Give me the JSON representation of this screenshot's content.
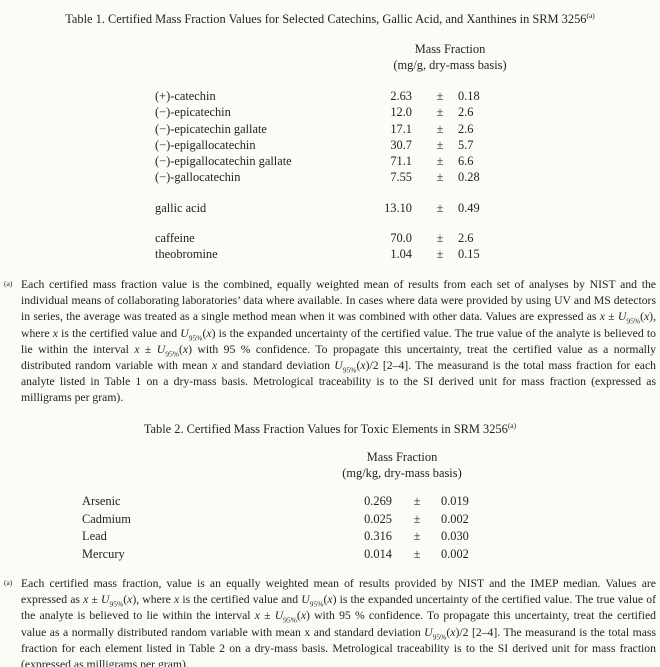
{
  "page": {
    "background": "#fcfcf7",
    "text_color": "#222222"
  },
  "table1": {
    "title": "Table 1.  Certified Mass Fraction Values for Selected Catechins, Gallic Acid, and Xanthines in SRM 3256",
    "title_superscript": "(a)",
    "header_line1": "Mass Fraction",
    "header_line2": "(mg/g, dry-mass basis)",
    "groups": [
      {
        "rows": [
          {
            "name": "(+)-catechin",
            "value": "2.63",
            "pm": "±",
            "unc": "0.18"
          },
          {
            "name": "(−)-epicatechin",
            "value": "12.0",
            "pm": "±",
            "unc": "2.6"
          },
          {
            "name": "(−)-epicatechin gallate",
            "value": "17.1",
            "pm": "±",
            "unc": "2.6"
          },
          {
            "name": "(−)-epigallocatechin",
            "value": "30.7",
            "pm": "±",
            "unc": "5.7"
          },
          {
            "name": "(−)-epigallocatechin gallate",
            "value": "71.1",
            "pm": "±",
            "unc": "6.6"
          },
          {
            "name": "(−)-gallocatechin",
            "value": "7.55",
            "pm": "±",
            "unc": "0.28"
          }
        ]
      },
      {
        "rows": [
          {
            "name": "gallic acid",
            "value": "13.10",
            "pm": "±",
            "unc": "0.49"
          }
        ]
      },
      {
        "rows": [
          {
            "name": "caffeine",
            "value": "70.0",
            "pm": "±",
            "unc": "2.6"
          },
          {
            "name": "theobromine",
            "value": "1.04",
            "pm": "±",
            "unc": "0.15"
          }
        ]
      }
    ],
    "footnote_marker": "(a)",
    "footnote_html": "Each certified mass fraction value is the combined, equally weighted mean of results from each set of analyses by NIST and the individual means of collaborating laboratories’ data where available.  In cases where data were provided by using UV and MS detectors in series, the average was treated as a single method mean when it was combined with other data.  Values are expressed as <i>x</i> ± <i>U</i><sub>95%</sub>(<i>x</i>), where <i>x</i> is the certified value and <i>U</i><sub>95%</sub>(<i>x</i>) is the expanded uncertainty of the certified value.  The true value of the analyte is believed to lie within the interval <i>x</i> ± <i>U</i><sub>95%</sub>(<i>x</i>) with 95 % confidence.  To propagate this uncertainty, treat the certified value as a normally distributed random variable with mean <i>x</i> and standard deviation <i>U</i><sub>95%</sub>(<i>x</i>)/2 [2–4].  The measurand is the total mass fraction for each analyte listed in Table 1 on a dry-mass basis.  Metrological traceability is to the SI derived unit for mass fraction (expressed as milligrams per gram)."
  },
  "table2": {
    "title": "Table 2.  Certified Mass Fraction Values for Toxic Elements in SRM 3256",
    "title_superscript": "(a)",
    "header_line1": "Mass Fraction",
    "header_line2": "(mg/kg, dry-mass basis)",
    "groups": [
      {
        "rows": [
          {
            "name": "Arsenic",
            "value": "0.269",
            "pm": "±",
            "unc": "0.019"
          },
          {
            "name": "Cadmium",
            "value": "0.025",
            "pm": "±",
            "unc": "0.002"
          },
          {
            "name": "Lead",
            "value": "0.316",
            "pm": "±",
            "unc": "0.030"
          },
          {
            "name": "Mercury",
            "value": "0.014",
            "pm": "±",
            "unc": "0.002"
          }
        ]
      }
    ],
    "footnote_marker": "(a)",
    "footnote_html": "Each certified mass fraction, value is an equally weighted mean of results provided by NIST and the IMEP median.  Values are expressed as <i>x</i> ± <i>U</i><sub>95%</sub>(<i>x</i>), where <i>x</i> is the certified value and <i>U</i><sub>95%</sub>(<i>x</i>) is the expanded uncertainty of the certified value.  The true value of the analyte is believed to lie within the interval <i>x</i> ± <i>U</i><sub>95%</sub>(<i>x</i>) with 95 % confidence.  To propagate this uncertainty, treat the certified value as a normally distributed random variable with mean x and standard deviation <i>U</i><sub>95%</sub>(<i>x</i>)/2 [2–4].  The measurand is the total mass fraction for each element listed in Table 2 on a dry-mass basis.  Metrological traceability is to the SI derived unit for mass fraction (expressed as milligrams per gram)."
  }
}
